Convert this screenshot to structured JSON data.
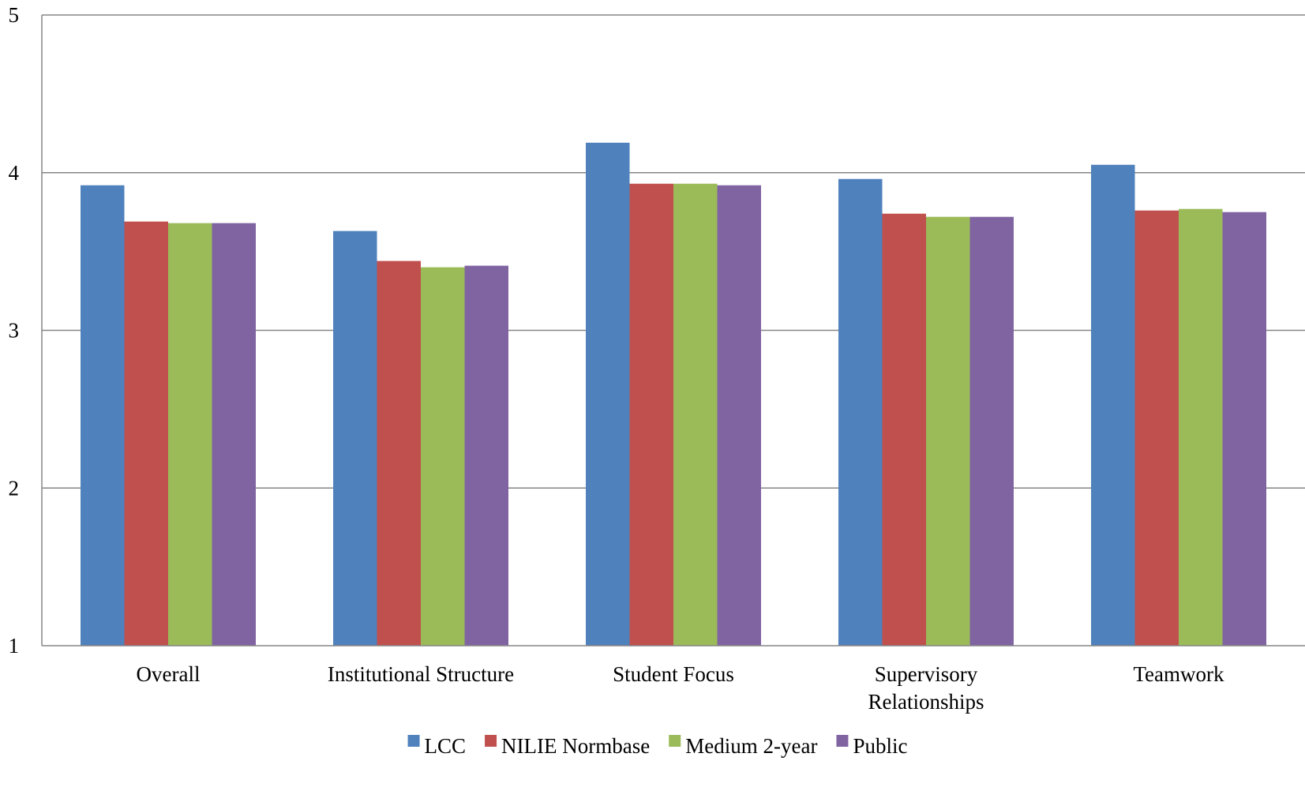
{
  "chart_data": {
    "type": "bar",
    "title": "",
    "xlabel": "",
    "ylabel": "",
    "ylim": [
      1,
      5
    ],
    "yticks": [
      "1",
      "2",
      "3",
      "4",
      "5"
    ],
    "grid": true,
    "legend_position": "bottom",
    "categories": [
      [
        "Overall"
      ],
      [
        "Institutional Structure"
      ],
      [
        "Student Focus"
      ],
      [
        "Supervisory",
        "Relationships"
      ],
      [
        "Teamwork"
      ]
    ],
    "series": [
      {
        "name": "LCC",
        "color": "#4F81BD",
        "values": [
          3.92,
          3.63,
          4.19,
          3.96,
          4.05
        ]
      },
      {
        "name": "NILIE Normbase",
        "color": "#C0504D",
        "values": [
          3.69,
          3.44,
          3.93,
          3.74,
          3.76
        ]
      },
      {
        "name": "Medium 2-year",
        "color": "#9BBB59",
        "values": [
          3.68,
          3.4,
          3.93,
          3.72,
          3.77
        ]
      },
      {
        "name": "Public",
        "color": "#8064A2",
        "values": [
          3.68,
          3.41,
          3.92,
          3.72,
          3.75
        ]
      }
    ]
  }
}
